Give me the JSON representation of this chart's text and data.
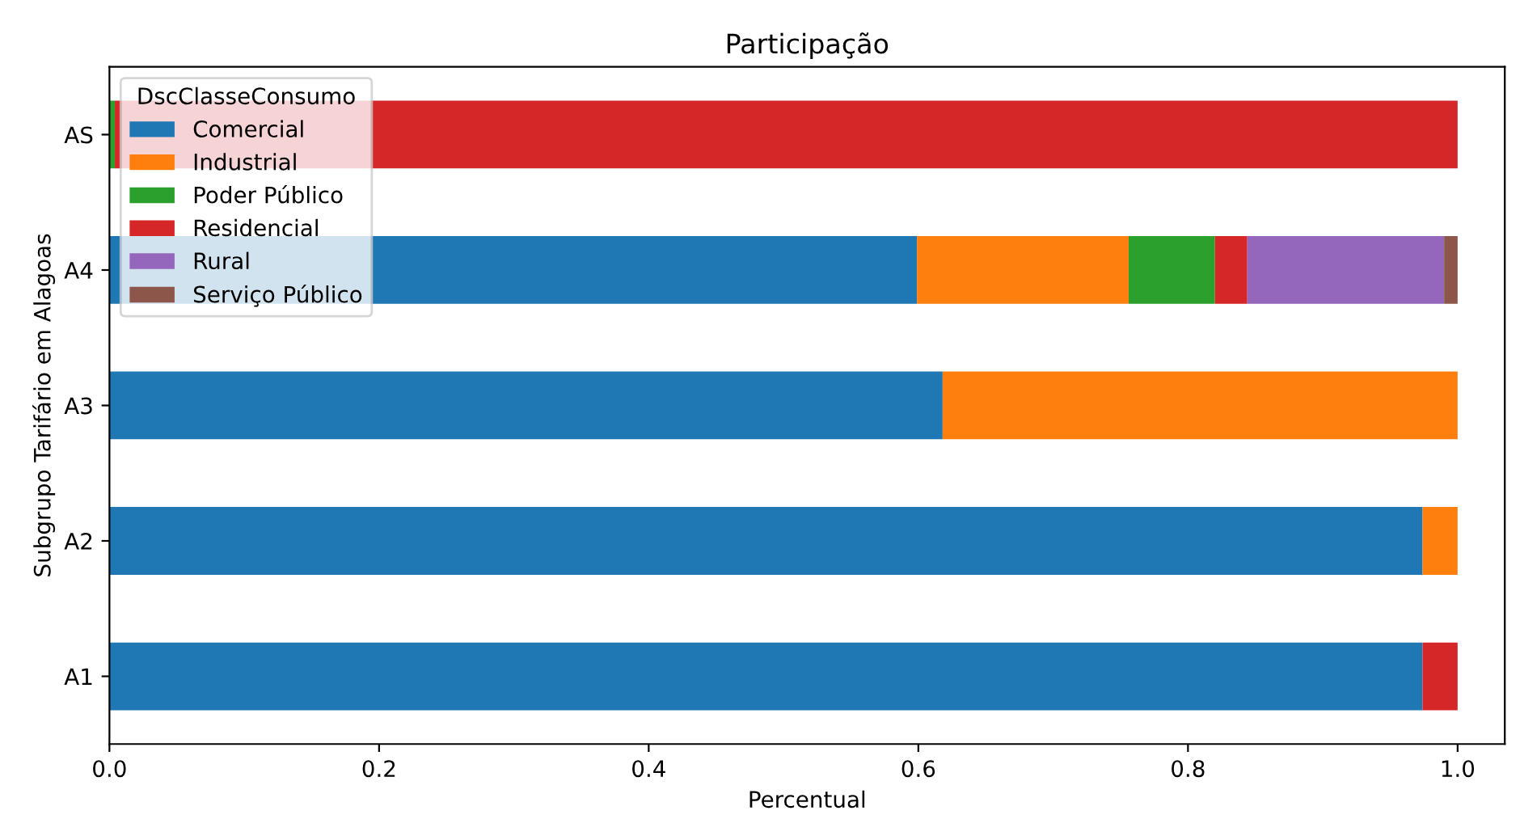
{
  "chart_data": {
    "type": "bar",
    "orientation": "horizontal",
    "stacked": true,
    "title": "Participação",
    "xlabel": "Percentual",
    "ylabel": "Subgrupo Tarifário em Alagoas",
    "legend_title": "DscClasseConsumo",
    "legend": "top left",
    "categories": [
      "AS",
      "A4",
      "A3",
      "A2",
      "A1"
    ],
    "series": [
      {
        "name": "Comercial",
        "color": "#1f77b4",
        "values": [
          0,
          0.599,
          0.618,
          0.974,
          0.974
        ]
      },
      {
        "name": "Industrial",
        "color": "#ff7f0e",
        "values": [
          0,
          0.157,
          0.382,
          0.026,
          0
        ]
      },
      {
        "name": "Poder Público",
        "color": "#2ca02c",
        "values": [
          0.004,
          0.064,
          0,
          0,
          0
        ]
      },
      {
        "name": "Residencial",
        "color": "#d62728",
        "values": [
          0.996,
          0.024,
          0,
          0,
          0.026
        ]
      },
      {
        "name": "Rural",
        "color": "#9467bd",
        "values": [
          0,
          0.146,
          0,
          0,
          0
        ]
      },
      {
        "name": "Serviço Público",
        "color": "#8c564b",
        "values": [
          0,
          0.01,
          0,
          0,
          0
        ]
      }
    ],
    "xlim": [
      0,
      1.035
    ],
    "xticks": [
      {
        "value": 0,
        "label": "0.0"
      },
      {
        "value": 0.2,
        "label": "0.2"
      },
      {
        "value": 0.4,
        "label": "0.4"
      },
      {
        "value": 0.6,
        "label": "0.6"
      },
      {
        "value": 0.8,
        "label": "0.8"
      },
      {
        "value": 1,
        "label": "1.0"
      }
    ]
  }
}
